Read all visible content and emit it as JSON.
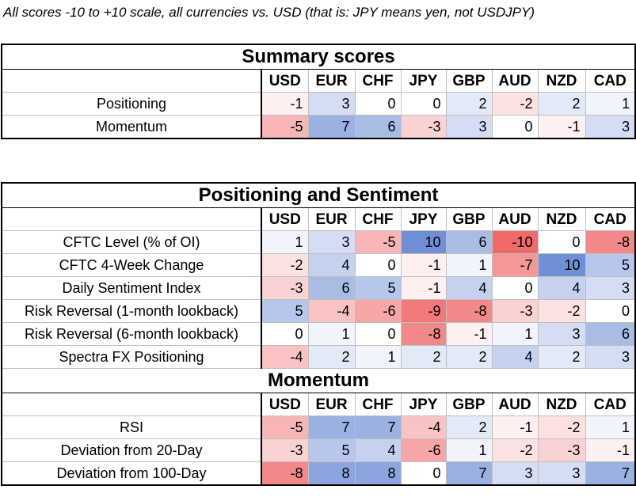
{
  "caption": "All scores -10 to +10 scale, all currencies vs. USD (that is: JPY means yen, not USDJPY)",
  "currencies": [
    "USD",
    "EUR",
    "CHF",
    "JPY",
    "GBP",
    "AUD",
    "NZD",
    "CAD"
  ],
  "colors": {
    "positive": "#6f8fd6",
    "negative": "#f06a6a",
    "neutral": "#ffffff"
  },
  "summary": {
    "title": "Summary scores",
    "rows": [
      {
        "label": "Positioning",
        "values": [
          -1,
          3,
          0,
          0,
          2,
          -2,
          2,
          1
        ]
      },
      {
        "label": "Momentum",
        "values": [
          -5,
          7,
          6,
          -3,
          3,
          0,
          -1,
          3
        ]
      }
    ]
  },
  "positioning": {
    "title": "Positioning and Sentiment",
    "rows": [
      {
        "label": "CFTC Level (% of OI)",
        "values": [
          1,
          3,
          -5,
          10,
          6,
          -10,
          0,
          -8
        ]
      },
      {
        "label": "CFTC 4-Week Change",
        "values": [
          -2,
          4,
          0,
          -1,
          1,
          -7,
          10,
          5
        ]
      },
      {
        "label": "Daily Sentiment Index",
        "values": [
          -3,
          6,
          5,
          -1,
          4,
          0,
          4,
          3
        ]
      },
      {
        "label": "Risk Reversal (1-month lookback)",
        "values": [
          5,
          -4,
          -6,
          -9,
          -8,
          -3,
          -2,
          0
        ]
      },
      {
        "label": "Risk Reversal (6-month lookback)",
        "values": [
          0,
          1,
          0,
          -8,
          -1,
          1,
          3,
          6
        ]
      },
      {
        "label": "Spectra FX Positioning",
        "values": [
          -4,
          2,
          1,
          2,
          2,
          4,
          2,
          3
        ]
      }
    ]
  },
  "momentum": {
    "title": "Momentum",
    "rows": [
      {
        "label": "RSI",
        "values": [
          -5,
          7,
          7,
          -4,
          2,
          -1,
          -2,
          1
        ]
      },
      {
        "label": "Deviation from 20-Day",
        "values": [
          -3,
          5,
          4,
          -6,
          1,
          -2,
          -3,
          -1
        ]
      },
      {
        "label": "Deviation from 100-Day",
        "values": [
          -8,
          8,
          8,
          0,
          7,
          3,
          3,
          7
        ]
      }
    ]
  }
}
